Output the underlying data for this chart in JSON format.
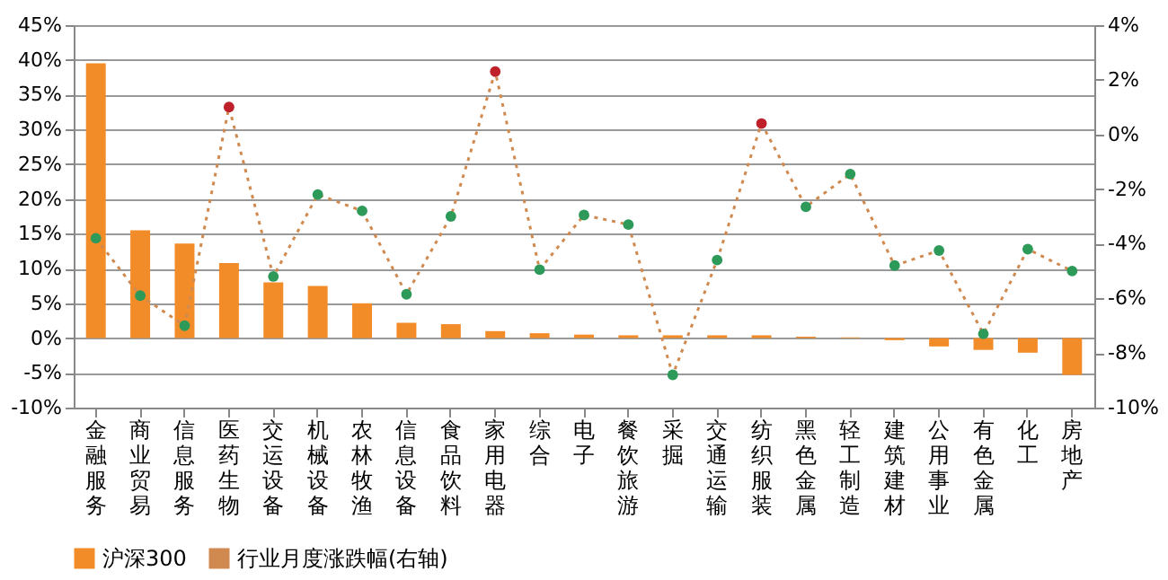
{
  "chart_data": {
    "type": "bar",
    "categories": [
      "金融服务",
      "商业贸易",
      "信息服务",
      "医药生物",
      "交运设备",
      "机械设备",
      "农林牧渔",
      "信息设备",
      "食品饮料",
      "家用电器",
      "综合",
      "电子",
      "餐饮旅游",
      "采掘",
      "交通运输",
      "纺织服装",
      "黑色金属",
      "轻工制造",
      "建筑建材",
      "公用事业",
      "有色金属",
      "化工",
      "房地产"
    ],
    "series": [
      {
        "name": "沪深300",
        "color": "#f28c28",
        "values": [
          39.5,
          15.5,
          13.6,
          10.8,
          8,
          7.5,
          5,
          2.2,
          2,
          1,
          0.7,
          0.5,
          0.4,
          0.4,
          0.4,
          0.4,
          0.2,
          0.1,
          -0.3,
          -1.2,
          -1.7,
          -2.1,
          -5.3
        ]
      },
      {
        "name": "行业月度涨跌幅(右轴)",
        "type": "line",
        "axis": "y2",
        "color": "#d08a50",
        "line_style": "dotted",
        "marker": "circle",
        "colors": [
          "#2e9a5a",
          "#2e9a5a",
          "#2e9a5a",
          "#c0202a",
          "#2e9a5a",
          "#2e9a5a",
          "#2e9a5a",
          "#2e9a5a",
          "#2e9a5a",
          "#c0202a",
          "#2e9a5a",
          "#2e9a5a",
          "#2e9a5a",
          "#2e9a5a",
          "#2e9a5a",
          "#c0202a",
          "#2e9a5a",
          "#2e9a5a",
          "#2e9a5a",
          "#2e9a5a",
          "#2e9a5a",
          "#2e9a5a",
          "#2e9a5a"
        ],
        "values": [
          -3.8,
          -5.9,
          -7.0,
          1.0,
          -5.2,
          -2.2,
          -2.8,
          -5.85,
          -3.0,
          2.3,
          -4.95,
          -2.95,
          -3.3,
          -8.8,
          -4.6,
          0.4,
          -2.65,
          -1.45,
          -4.8,
          -4.25,
          -7.3,
          -4.2,
          -5.0
        ]
      }
    ],
    "ylim": [
      -10,
      45
    ],
    "yticks": [
      {
        "value": -10,
        "label": "-10%"
      },
      {
        "value": -5,
        "label": "-5%"
      },
      {
        "value": 0,
        "label": "0%"
      },
      {
        "value": 5,
        "label": "5%"
      },
      {
        "value": 10,
        "label": "10%"
      },
      {
        "value": 15,
        "label": "15%"
      },
      {
        "value": 20,
        "label": "20%"
      },
      {
        "value": 25,
        "label": "25%"
      },
      {
        "value": 30,
        "label": "30%"
      },
      {
        "value": 35,
        "label": "35%"
      },
      {
        "value": 40,
        "label": "40%"
      },
      {
        "value": 45,
        "label": "45%"
      }
    ],
    "y2lim": [
      -10,
      4
    ],
    "y2ticks": [
      {
        "value": -10,
        "label": "-10%"
      },
      {
        "value": -8,
        "label": "-8%"
      },
      {
        "value": -6,
        "label": "-6%"
      },
      {
        "value": -4,
        "label": "-4%"
      },
      {
        "value": -2,
        "label": "-2%"
      },
      {
        "value": 0,
        "label": "0%"
      },
      {
        "value": 2,
        "label": "2%"
      },
      {
        "value": 4,
        "label": "4%"
      }
    ],
    "grid": "y",
    "legend": "bottom"
  }
}
